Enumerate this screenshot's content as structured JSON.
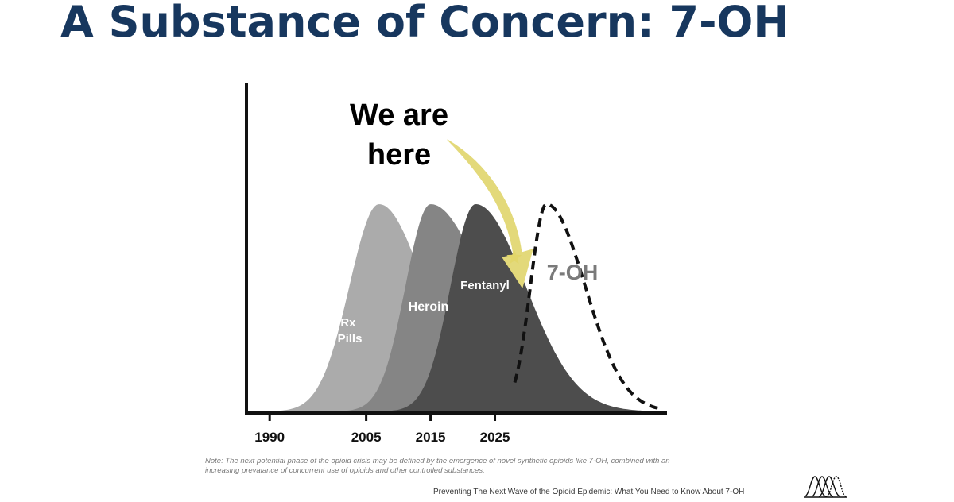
{
  "slide": {
    "title": "A Substance of Concern: 7-OH",
    "note": "Note: The next potential phase of the opioid crisis may be defined by the emergence of novel synthetic opioids like 7-OH, combined with an increasing prevalance of concurrent use of opioids and other controlled substances.",
    "footer": "Preventing The Next Wave of the Opioid Epidemic: What You Need to Know About 7-OH",
    "logo_icon": "overlapping-waves-logo"
  },
  "chart_data": {
    "type": "area",
    "xlim": [
      1988,
      2051
    ],
    "ylim": [
      0,
      1
    ],
    "x_ticks": [
      "1990",
      "2005",
      "2015",
      "2025"
    ],
    "x_tick_values": [
      1990,
      2005,
      2015,
      2025
    ],
    "y_axis_labeled": false,
    "grid": false,
    "series": [
      {
        "name": "Rx\nPills",
        "peak_year": 2007,
        "peak": 1.0,
        "width_left": 6.5,
        "width_right": 10,
        "color": "#ababab",
        "style": "filled"
      },
      {
        "name": "Heroin",
        "peak_year": 2015,
        "peak": 1.0,
        "width_left": 5.5,
        "width_right": 12,
        "color": "#858585",
        "style": "filled"
      },
      {
        "name": "Fentanyl",
        "peak_year": 2022,
        "peak": 1.0,
        "width_left": 5.5,
        "width_right": 11,
        "color": "#4d4d4d",
        "style": "filled"
      },
      {
        "name": "7-OH",
        "peak_year": 2033,
        "peak": 1.0,
        "width_left": 3.5,
        "width_right": 8.5,
        "color": "#111111",
        "style": "dashed"
      }
    ],
    "annotation": {
      "text_line1": "We are",
      "text_line2": "here",
      "marker_year": 2028,
      "marker_icon": "star-icon",
      "arrow_color": "#e3d97a",
      "marker_color": "#e2d66a"
    }
  }
}
